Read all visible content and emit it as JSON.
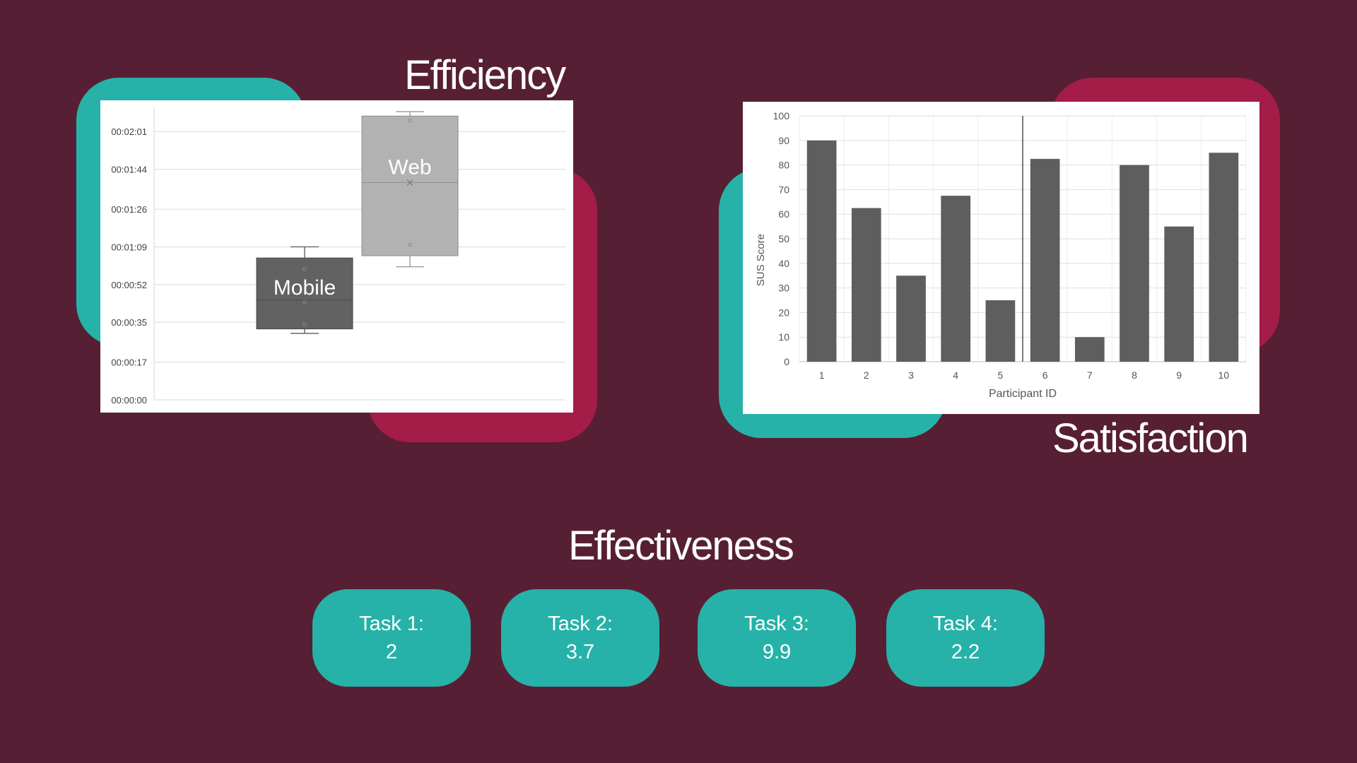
{
  "colors": {
    "background": "#571f33",
    "teal": "#26b2a8",
    "crimson": "#a31d48",
    "panel": "#ffffff",
    "mobile_box": "#626262",
    "web_box": "#b2b2b2",
    "bar": "#5e5e5e"
  },
  "headings": {
    "efficiency": "Efficiency",
    "satisfaction": "Satisfaction",
    "effectiveness": "Effectiveness"
  },
  "chart_data": [
    {
      "type": "box",
      "title": "Efficiency",
      "ytick_labels": [
        "00:00:00",
        "00:00:17",
        "00:00:35",
        "00:00:52",
        "00:01:09",
        "00:01:26",
        "00:01:44",
        "00:02:01"
      ],
      "ytick_seconds": [
        0,
        17,
        35,
        52,
        69,
        86,
        104,
        121
      ],
      "ylim_seconds": [
        0,
        130
      ],
      "grid": true,
      "series": [
        {
          "name": "Mobile",
          "whisker_low": 30,
          "q1": 32,
          "median": 45,
          "q3": 64,
          "whisker_high": 69,
          "points": [
            34,
            44,
            59
          ]
        },
        {
          "name": "Web",
          "whisker_low": 60,
          "q1": 65,
          "median": 98,
          "q3": 128,
          "mean": 98,
          "whisker_high": 130,
          "points": [
            70,
            126
          ]
        }
      ]
    },
    {
      "type": "bar",
      "title": "Satisfaction",
      "xlabel": "Participant ID",
      "ylabel": "SUS Score",
      "categories": [
        "1",
        "2",
        "3",
        "4",
        "5",
        "6",
        "7",
        "8",
        "9",
        "10"
      ],
      "values": [
        90,
        62.5,
        35,
        67.5,
        25,
        82.5,
        10,
        80,
        55,
        85
      ],
      "yticks": [
        0,
        10,
        20,
        30,
        40,
        50,
        60,
        70,
        80,
        90,
        100
      ],
      "ylim": [
        0,
        100
      ],
      "divider_after_category": "5",
      "grid": true
    }
  ],
  "tasks": [
    {
      "label": "Task 1:",
      "value": "2"
    },
    {
      "label": "Task 2:",
      "value": "3.7"
    },
    {
      "label": "Task 3:",
      "value": "9.9"
    },
    {
      "label": "Task 4:",
      "value": "2.2"
    }
  ]
}
